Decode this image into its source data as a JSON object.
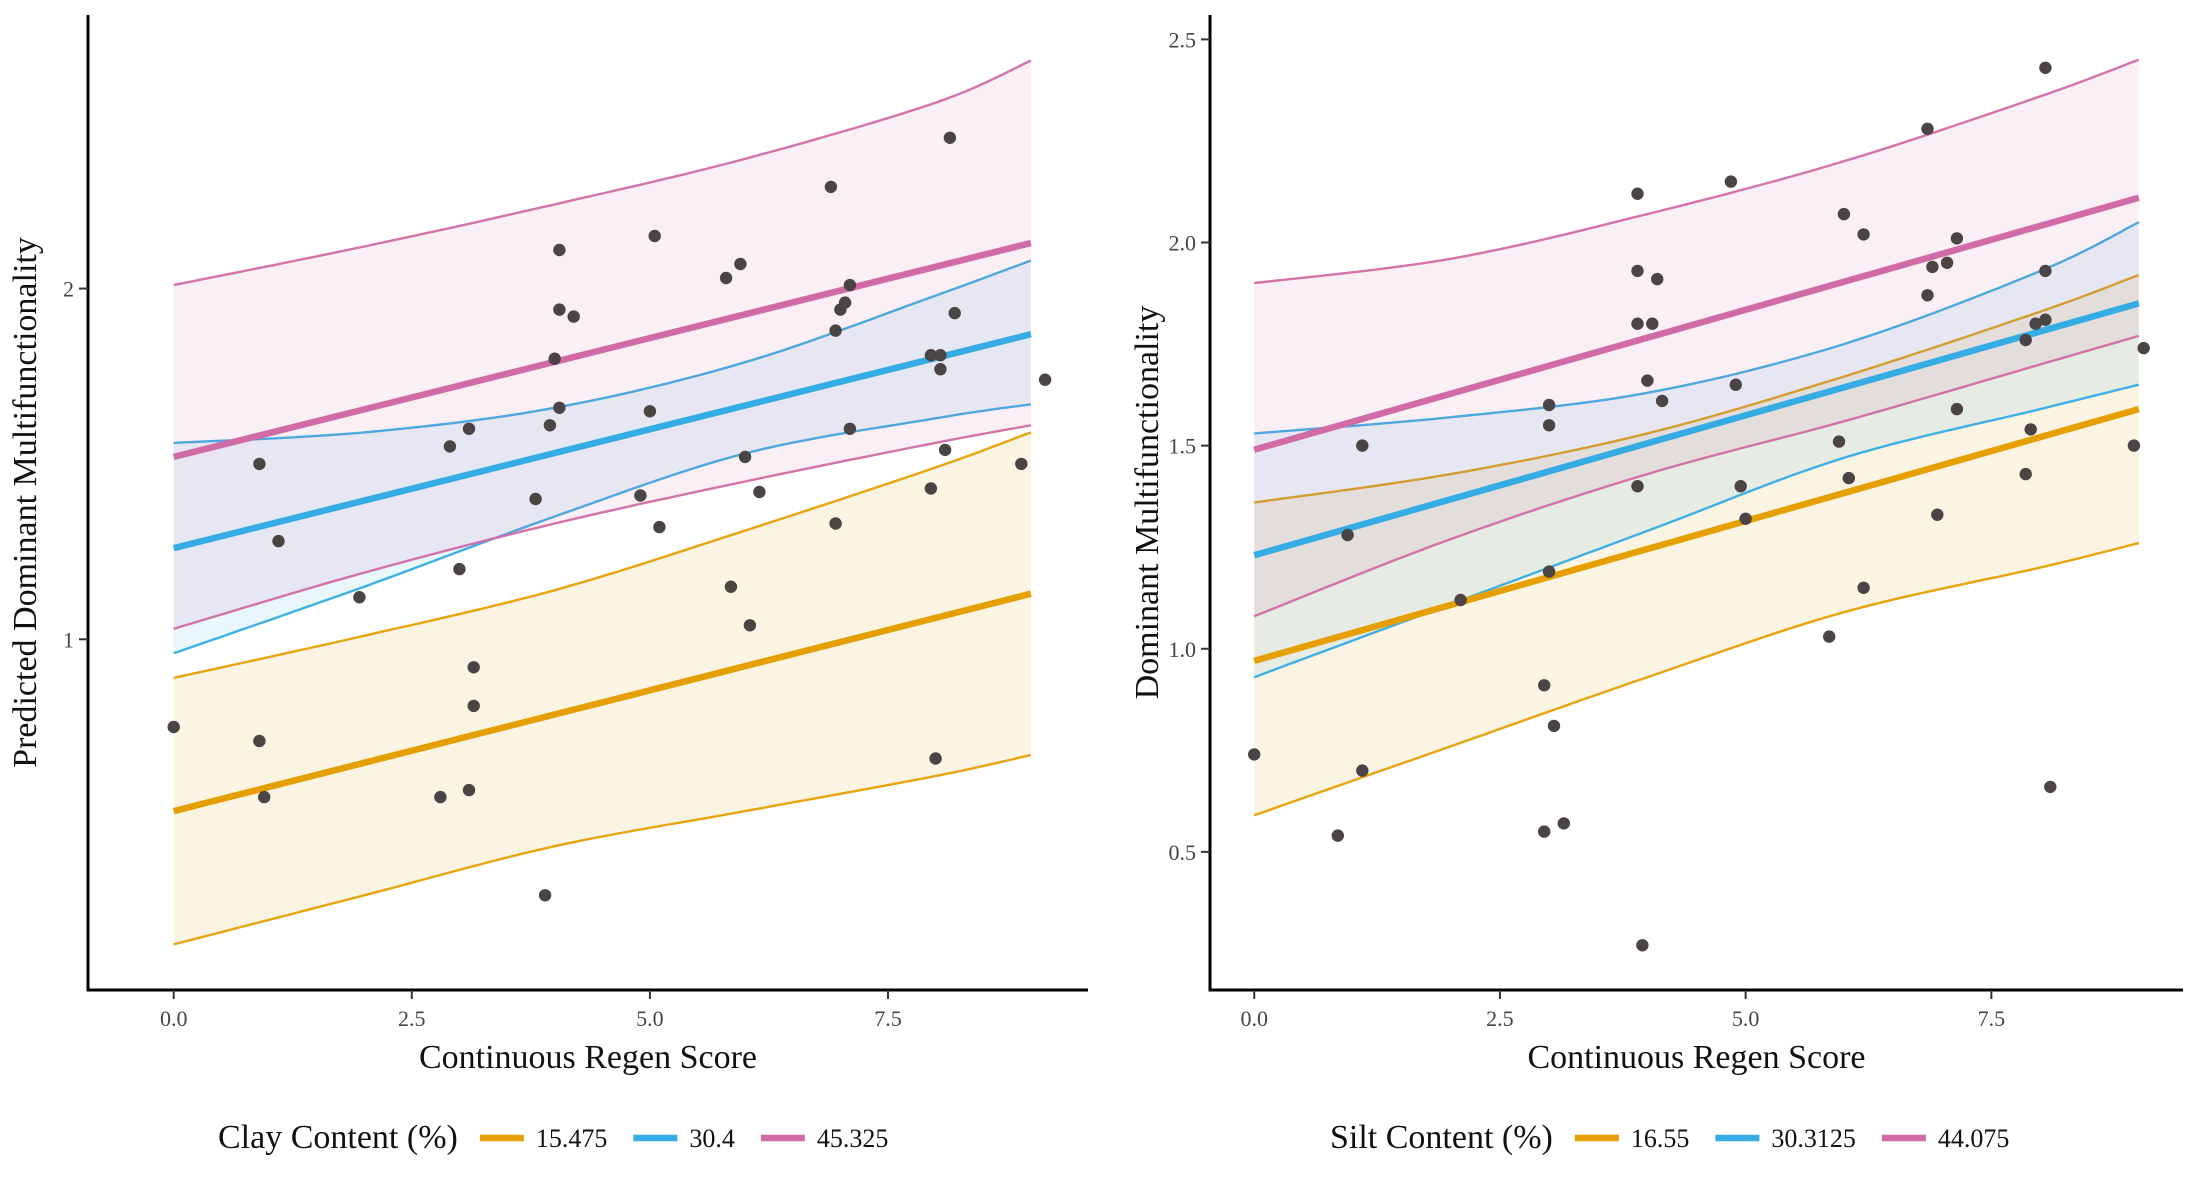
{
  "chart_data": [
    {
      "type": "scatter",
      "xlabel": "Continuous Regen Score",
      "ylabel": "Predicted Dominant Multifunctionality",
      "xlim": [
        -0.9,
        9.6
      ],
      "ylim": [
        0.0,
        2.78
      ],
      "xticks": [
        0.0,
        2.5,
        5.0,
        7.5
      ],
      "xtick_labels": [
        "0.0",
        "2.5",
        "5.0",
        "7.5"
      ],
      "yticks": [
        1,
        2
      ],
      "ytick_labels": [
        "1",
        "2"
      ],
      "grid": false,
      "legend": {
        "title": "Clay Content (%)",
        "placement": "bottom",
        "entries": [
          {
            "label": "15.475",
            "color": "#E69F00"
          },
          {
            "label": "30.4",
            "color": "#35ACE3"
          },
          {
            "label": "45.325",
            "color": "#D16BA5"
          }
        ]
      },
      "series": [
        {
          "name": "15.475",
          "color": "#E69F00",
          "fit": [
            [
              0,
              0.51
            ],
            [
              9,
              1.13
            ]
          ],
          "lower": [
            [
              0,
              0.13
            ],
            [
              2,
              0.27
            ],
            [
              4,
              0.41
            ],
            [
              6,
              0.51
            ],
            [
              8,
              0.61
            ],
            [
              9,
              0.67
            ]
          ],
          "upper": [
            [
              0,
              0.89
            ],
            [
              2,
              1.01
            ],
            [
              4,
              1.14
            ],
            [
              6,
              1.31
            ],
            [
              8,
              1.49
            ],
            [
              9,
              1.59
            ]
          ]
        },
        {
          "name": "30.4",
          "color": "#35ACE3",
          "fit": [
            [
              0,
              1.26
            ],
            [
              9,
              1.87
            ]
          ],
          "lower": [
            [
              0,
              0.96
            ],
            [
              2,
              1.15
            ],
            [
              4,
              1.35
            ],
            [
              6,
              1.53
            ],
            [
              8,
              1.63
            ],
            [
              9,
              1.67
            ]
          ],
          "upper": [
            [
              0,
              1.56
            ],
            [
              2,
              1.59
            ],
            [
              4,
              1.66
            ],
            [
              6,
              1.79
            ],
            [
              8,
              1.98
            ],
            [
              9,
              2.08
            ]
          ]
        },
        {
          "name": "45.325",
          "color": "#D16BA5",
          "fit": [
            [
              0,
              1.52
            ],
            [
              9,
              2.13
            ]
          ],
          "lower": [
            [
              0,
              1.03
            ],
            [
              2,
              1.19
            ],
            [
              4,
              1.33
            ],
            [
              6,
              1.45
            ],
            [
              8,
              1.56
            ],
            [
              9,
              1.61
            ]
          ],
          "upper": [
            [
              0,
              2.01
            ],
            [
              2,
              2.12
            ],
            [
              4,
              2.24
            ],
            [
              6,
              2.37
            ],
            [
              8,
              2.53
            ],
            [
              9,
              2.65
            ]
          ]
        }
      ],
      "points": [
        [
          0.0,
          0.75
        ],
        [
          0.9,
          1.5
        ],
        [
          0.9,
          0.71
        ],
        [
          0.95,
          0.55
        ],
        [
          1.1,
          1.28
        ],
        [
          1.95,
          1.12
        ],
        [
          2.8,
          0.55
        ],
        [
          2.9,
          1.55
        ],
        [
          3.0,
          1.2
        ],
        [
          3.1,
          1.6
        ],
        [
          3.1,
          0.57
        ],
        [
          3.15,
          0.81
        ],
        [
          3.15,
          0.92
        ],
        [
          3.8,
          1.4
        ],
        [
          3.9,
          0.27
        ],
        [
          3.95,
          1.61
        ],
        [
          4.0,
          1.8
        ],
        [
          4.05,
          1.66
        ],
        [
          4.05,
          1.94
        ],
        [
          4.05,
          2.11
        ],
        [
          4.2,
          1.92
        ],
        [
          4.9,
          1.41
        ],
        [
          5.0,
          1.65
        ],
        [
          5.05,
          2.15
        ],
        [
          5.1,
          1.32
        ],
        [
          5.8,
          2.03
        ],
        [
          5.85,
          1.15
        ],
        [
          5.95,
          2.07
        ],
        [
          6.0,
          1.52
        ],
        [
          6.05,
          1.04
        ],
        [
          6.15,
          1.42
        ],
        [
          6.9,
          2.29
        ],
        [
          6.95,
          1.33
        ],
        [
          6.95,
          1.88
        ],
        [
          7.0,
          1.94
        ],
        [
          7.05,
          1.96
        ],
        [
          7.1,
          1.6
        ],
        [
          7.1,
          2.01
        ],
        [
          7.95,
          1.81
        ],
        [
          7.95,
          1.43
        ],
        [
          8.0,
          0.66
        ],
        [
          8.05,
          1.77
        ],
        [
          8.05,
          1.81
        ],
        [
          8.1,
          1.54
        ],
        [
          8.15,
          2.43
        ],
        [
          8.2,
          1.93
        ],
        [
          8.9,
          1.5
        ],
        [
          9.15,
          1.74
        ]
      ]
    },
    {
      "type": "scatter",
      "xlabel": "Continuous Regen Score",
      "ylabel": "Dominant Multifunctionality",
      "xlim": [
        -0.45,
        9.45
      ],
      "ylim": [
        0.16,
        2.56
      ],
      "xticks": [
        0.0,
        2.5,
        5.0,
        7.5
      ],
      "xtick_labels": [
        "0.0",
        "2.5",
        "5.0",
        "7.5"
      ],
      "yticks": [
        0.5,
        1.0,
        1.5,
        2.0,
        2.5
      ],
      "ytick_labels": [
        "0.5",
        "1.0",
        "1.5",
        "2.0",
        "2.5"
      ],
      "grid": false,
      "legend": {
        "title": "Silt Content (%)",
        "placement": "bottom",
        "entries": [
          {
            "label": "16.55",
            "color": "#E69F00"
          },
          {
            "label": "30.3125",
            "color": "#35ACE3"
          },
          {
            "label": "44.075",
            "color": "#D16BA5"
          }
        ]
      },
      "series": [
        {
          "name": "16.55",
          "color": "#E69F00",
          "fit": [
            [
              0,
              0.97
            ],
            [
              9,
              1.59
            ]
          ],
          "lower": [
            [
              0,
              0.59
            ],
            [
              2,
              0.76
            ],
            [
              4,
              0.93
            ],
            [
              6,
              1.09
            ],
            [
              8,
              1.2
            ],
            [
              9,
              1.26
            ]
          ],
          "upper": [
            [
              0,
              1.36
            ],
            [
              2,
              1.43
            ],
            [
              4,
              1.53
            ],
            [
              6,
              1.67
            ],
            [
              8,
              1.83
            ],
            [
              9,
              1.92
            ]
          ]
        },
        {
          "name": "30.3125",
          "color": "#35ACE3",
          "fit": [
            [
              0,
              1.23
            ],
            [
              9,
              1.85
            ]
          ],
          "lower": [
            [
              0,
              0.93
            ],
            [
              2,
              1.11
            ],
            [
              4,
              1.29
            ],
            [
              6,
              1.47
            ],
            [
              8,
              1.59
            ],
            [
              9,
              1.65
            ]
          ],
          "upper": [
            [
              0,
              1.53
            ],
            [
              2,
              1.57
            ],
            [
              4,
              1.63
            ],
            [
              6,
              1.75
            ],
            [
              8,
              1.93
            ],
            [
              9,
              2.05
            ]
          ]
        },
        {
          "name": "44.075",
          "color": "#D16BA5",
          "fit": [
            [
              0,
              1.49
            ],
            [
              9,
              2.11
            ]
          ],
          "lower": [
            [
              0,
              1.08
            ],
            [
              2,
              1.27
            ],
            [
              4,
              1.43
            ],
            [
              6,
              1.56
            ],
            [
              8,
              1.7
            ],
            [
              9,
              1.77
            ]
          ],
          "upper": [
            [
              0,
              1.9
            ],
            [
              2,
              1.96
            ],
            [
              4,
              2.07
            ],
            [
              6,
              2.2
            ],
            [
              8,
              2.36
            ],
            [
              9,
              2.45
            ]
          ]
        }
      ],
      "points": [
        [
          0.0,
          0.74
        ],
        [
          0.85,
          0.54
        ],
        [
          0.95,
          1.28
        ],
        [
          1.1,
          0.7
        ],
        [
          1.1,
          1.5
        ],
        [
          2.1,
          1.12
        ],
        [
          2.95,
          0.55
        ],
        [
          2.95,
          0.91
        ],
        [
          3.0,
          1.6
        ],
        [
          3.0,
          1.55
        ],
        [
          3.0,
          1.19
        ],
        [
          3.05,
          0.81
        ],
        [
          3.15,
          0.57
        ],
        [
          3.9,
          1.4
        ],
        [
          3.9,
          1.8
        ],
        [
          3.9,
          1.93
        ],
        [
          3.9,
          2.12
        ],
        [
          3.95,
          0.27
        ],
        [
          4.0,
          1.66
        ],
        [
          4.05,
          1.8
        ],
        [
          4.1,
          1.91
        ],
        [
          4.15,
          1.61
        ],
        [
          4.85,
          2.15
        ],
        [
          4.9,
          1.65
        ],
        [
          4.95,
          1.4
        ],
        [
          5.0,
          1.32
        ],
        [
          5.85,
          1.03
        ],
        [
          5.95,
          1.51
        ],
        [
          6.0,
          2.07
        ],
        [
          6.05,
          1.42
        ],
        [
          6.2,
          2.02
        ],
        [
          6.2,
          1.15
        ],
        [
          6.85,
          2.28
        ],
        [
          6.85,
          1.87
        ],
        [
          6.9,
          1.94
        ],
        [
          6.95,
          1.33
        ],
        [
          7.05,
          1.95
        ],
        [
          7.15,
          2.01
        ],
        [
          7.15,
          1.59
        ],
        [
          7.85,
          1.76
        ],
        [
          7.85,
          1.43
        ],
        [
          7.9,
          1.54
        ],
        [
          7.95,
          1.8
        ],
        [
          8.05,
          2.43
        ],
        [
          8.05,
          1.81
        ],
        [
          8.05,
          1.93
        ],
        [
          8.1,
          0.66
        ],
        [
          8.95,
          1.5
        ],
        [
          9.05,
          1.74
        ]
      ]
    }
  ]
}
